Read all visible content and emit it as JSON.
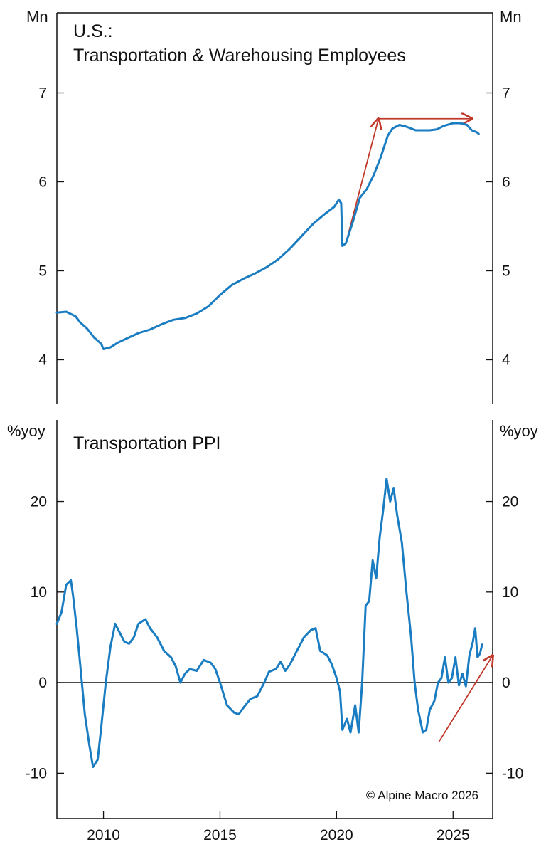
{
  "chart_data": [
    {
      "type": "line",
      "title_lines": [
        "U.S.:",
        "Transportation & Warehousing Employees"
      ],
      "unit_left": "Mn",
      "unit_right": "Mn",
      "ylim": [
        3.5,
        7.9
      ],
      "yticks": [
        4,
        5,
        6,
        7
      ],
      "xlim": [
        2008.0,
        2026.7
      ],
      "series": [
        {
          "color": "#1a7cc1",
          "points": [
            [
              2008.0,
              4.53
            ],
            [
              2008.4,
              4.54
            ],
            [
              2008.8,
              4.49
            ],
            [
              2009.0,
              4.42
            ],
            [
              2009.3,
              4.35
            ],
            [
              2009.6,
              4.25
            ],
            [
              2009.9,
              4.18
            ],
            [
              2010.0,
              4.12
            ],
            [
              2010.3,
              4.14
            ],
            [
              2010.6,
              4.19
            ],
            [
              2011.0,
              4.24
            ],
            [
              2011.5,
              4.3
            ],
            [
              2012.0,
              4.34
            ],
            [
              2012.5,
              4.4
            ],
            [
              2013.0,
              4.45
            ],
            [
              2013.5,
              4.47
            ],
            [
              2014.0,
              4.52
            ],
            [
              2014.5,
              4.6
            ],
            [
              2015.0,
              4.73
            ],
            [
              2015.5,
              4.84
            ],
            [
              2016.0,
              4.91
            ],
            [
              2016.5,
              4.97
            ],
            [
              2017.0,
              5.04
            ],
            [
              2017.5,
              5.13
            ],
            [
              2018.0,
              5.25
            ],
            [
              2018.5,
              5.39
            ],
            [
              2019.0,
              5.53
            ],
            [
              2019.5,
              5.64
            ],
            [
              2019.9,
              5.72
            ],
            [
              2020.1,
              5.8
            ],
            [
              2020.2,
              5.76
            ],
            [
              2020.25,
              5.28
            ],
            [
              2020.4,
              5.31
            ],
            [
              2020.7,
              5.55
            ],
            [
              2021.0,
              5.82
            ],
            [
              2021.3,
              5.92
            ],
            [
              2021.6,
              6.08
            ],
            [
              2021.9,
              6.28
            ],
            [
              2022.2,
              6.52
            ],
            [
              2022.4,
              6.6
            ],
            [
              2022.7,
              6.64
            ],
            [
              2023.0,
              6.62
            ],
            [
              2023.4,
              6.58
            ],
            [
              2023.8,
              6.58
            ],
            [
              2024.0,
              6.58
            ],
            [
              2024.3,
              6.59
            ],
            [
              2024.6,
              6.63
            ],
            [
              2025.0,
              6.66
            ],
            [
              2025.3,
              6.66
            ],
            [
              2025.6,
              6.64
            ],
            [
              2025.8,
              6.58
            ],
            [
              2026.0,
              6.56
            ],
            [
              2026.1,
              6.54
            ]
          ]
        }
      ],
      "annotations": [
        {
          "kind": "arrow",
          "color": "#c0392b",
          "from": [
            2020.4,
            5.31
          ],
          "to": [
            2021.8,
            6.71
          ]
        },
        {
          "kind": "arrow",
          "color": "#c0392b",
          "from": [
            2021.8,
            6.71
          ],
          "to": [
            2025.8,
            6.71
          ]
        }
      ]
    },
    {
      "type": "line",
      "title": "Transportation PPI",
      "unit_left": "%yoy",
      "unit_right": "%yoy",
      "ylim": [
        -15,
        29
      ],
      "yticks": [
        -10,
        0,
        10,
        20
      ],
      "xlim": [
        2008.0,
        2026.7
      ],
      "xticks": [
        2010,
        2015,
        2020,
        2025
      ],
      "zero_line": true,
      "credit": "© Alpine Macro 2026",
      "series": [
        {
          "color": "#1a7cc1",
          "points": [
            [
              2008.0,
              6.5
            ],
            [
              2008.2,
              7.8
            ],
            [
              2008.4,
              10.8
            ],
            [
              2008.6,
              11.3
            ],
            [
              2008.7,
              9.5
            ],
            [
              2008.85,
              6.0
            ],
            [
              2009.0,
              2.0
            ],
            [
              2009.2,
              -3.5
            ],
            [
              2009.4,
              -7.0
            ],
            [
              2009.55,
              -9.3
            ],
            [
              2009.75,
              -8.5
            ],
            [
              2009.9,
              -5.0
            ],
            [
              2010.1,
              0.0
            ],
            [
              2010.3,
              4.0
            ],
            [
              2010.5,
              6.5
            ],
            [
              2010.7,
              5.5
            ],
            [
              2010.9,
              4.5
            ],
            [
              2011.1,
              4.3
            ],
            [
              2011.3,
              5.0
            ],
            [
              2011.5,
              6.5
            ],
            [
              2011.8,
              7.0
            ],
            [
              2012.0,
              6.0
            ],
            [
              2012.3,
              5.0
            ],
            [
              2012.6,
              3.5
            ],
            [
              2012.9,
              2.8
            ],
            [
              2013.1,
              1.8
            ],
            [
              2013.3,
              0.0
            ],
            [
              2013.5,
              1.0
            ],
            [
              2013.7,
              1.5
            ],
            [
              2014.0,
              1.3
            ],
            [
              2014.3,
              2.5
            ],
            [
              2014.6,
              2.2
            ],
            [
              2014.8,
              1.5
            ],
            [
              2015.0,
              0.0
            ],
            [
              2015.3,
              -2.5
            ],
            [
              2015.6,
              -3.3
            ],
            [
              2015.8,
              -3.5
            ],
            [
              2016.0,
              -2.8
            ],
            [
              2016.3,
              -1.8
            ],
            [
              2016.6,
              -1.5
            ],
            [
              2016.9,
              0.0
            ],
            [
              2017.1,
              1.2
            ],
            [
              2017.4,
              1.5
            ],
            [
              2017.6,
              2.3
            ],
            [
              2017.8,
              1.3
            ],
            [
              2018.0,
              2.0
            ],
            [
              2018.3,
              3.5
            ],
            [
              2018.6,
              5.0
            ],
            [
              2018.9,
              5.8
            ],
            [
              2019.1,
              6.0
            ],
            [
              2019.3,
              3.5
            ],
            [
              2019.6,
              3.0
            ],
            [
              2019.8,
              2.0
            ],
            [
              2020.0,
              0.5
            ],
            [
              2020.15,
              -1.0
            ],
            [
              2020.25,
              -5.2
            ],
            [
              2020.45,
              -4.0
            ],
            [
              2020.6,
              -5.5
            ],
            [
              2020.8,
              -2.5
            ],
            [
              2020.95,
              -5.5
            ],
            [
              2021.1,
              0.0
            ],
            [
              2021.25,
              8.5
            ],
            [
              2021.4,
              9.0
            ],
            [
              2021.55,
              13.5
            ],
            [
              2021.7,
              11.5
            ],
            [
              2021.85,
              16.0
            ],
            [
              2022.0,
              19.0
            ],
            [
              2022.15,
              22.5
            ],
            [
              2022.3,
              20.0
            ],
            [
              2022.45,
              21.5
            ],
            [
              2022.6,
              18.5
            ],
            [
              2022.8,
              15.5
            ],
            [
              2023.0,
              10.0
            ],
            [
              2023.2,
              5.0
            ],
            [
              2023.35,
              0.0
            ],
            [
              2023.5,
              -3.0
            ],
            [
              2023.7,
              -5.5
            ],
            [
              2023.85,
              -5.2
            ],
            [
              2024.0,
              -3.0
            ],
            [
              2024.2,
              -2.0
            ],
            [
              2024.35,
              0.0
            ],
            [
              2024.5,
              0.5
            ],
            [
              2024.65,
              2.8
            ],
            [
              2024.8,
              0.0
            ],
            [
              2024.95,
              0.5
            ],
            [
              2025.1,
              2.8
            ],
            [
              2025.25,
              -0.3
            ],
            [
              2025.4,
              1.0
            ],
            [
              2025.55,
              -0.4
            ],
            [
              2025.7,
              3.0
            ],
            [
              2025.85,
              4.5
            ],
            [
              2025.95,
              6.0
            ],
            [
              2026.05,
              2.8
            ],
            [
              2026.15,
              3.2
            ],
            [
              2026.25,
              4.2
            ]
          ]
        }
      ],
      "annotations": [
        {
          "kind": "arrow",
          "color": "#c0392b",
          "from": [
            2024.4,
            -6.5
          ],
          "to": [
            2026.7,
            3.0
          ]
        }
      ]
    }
  ]
}
